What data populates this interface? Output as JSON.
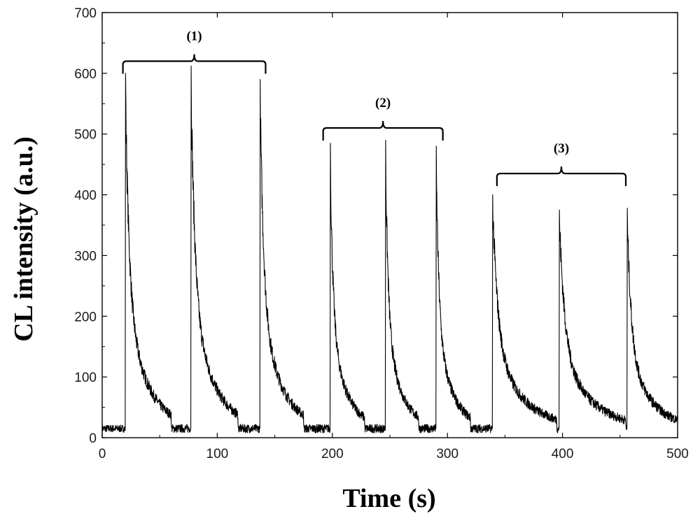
{
  "chart_data": {
    "type": "line",
    "title": "",
    "xlabel": "Time (s)",
    "ylabel": "CL intensity (a.u.)",
    "xlim": [
      0,
      500
    ],
    "ylim": [
      0,
      700
    ],
    "x_ticks": [
      0,
      100,
      200,
      300,
      400,
      500
    ],
    "y_ticks": [
      0,
      100,
      200,
      300,
      400,
      500,
      600,
      700
    ],
    "grid": false,
    "legend": "none",
    "baseline": 15,
    "series": [
      {
        "color": "#000000",
        "peaks": [
          {
            "t": 20,
            "peak": 600,
            "end": 60
          },
          {
            "t": 77,
            "peak": 612,
            "end": 118
          },
          {
            "t": 137,
            "peak": 590,
            "end": 175
          },
          {
            "t": 198,
            "peak": 485,
            "end": 228
          },
          {
            "t": 246,
            "peak": 490,
            "end": 275
          },
          {
            "t": 290,
            "peak": 480,
            "end": 320
          },
          {
            "t": 339,
            "peak": 400,
            "end": 395
          },
          {
            "t": 397,
            "peak": 375,
            "end": 455
          },
          {
            "t": 456,
            "peak": 378,
            "end": 500
          }
        ]
      }
    ],
    "annotations": [
      {
        "label": "(1)",
        "x_start": 18,
        "x_end": 142,
        "y": 620
      },
      {
        "label": "(2)",
        "x_start": 192,
        "x_end": 296,
        "y": 510
      },
      {
        "label": "(3)",
        "x_start": 343,
        "x_end": 455,
        "y": 435
      }
    ]
  }
}
